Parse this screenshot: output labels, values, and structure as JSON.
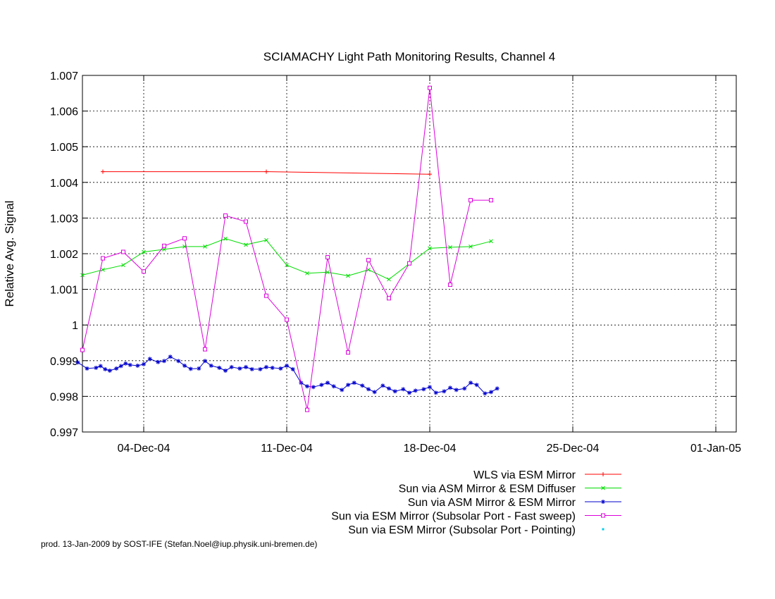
{
  "chart_data": {
    "type": "line",
    "title": "SCIAMACHY Light Path Monitoring Results, Channel 4",
    "xlabel": "",
    "ylabel": "Relative Avg. Signal",
    "x_range": [
      "30-Nov-04",
      "01-Jan-05"
    ],
    "xlim_days": [
      0,
      32
    ],
    "ylim": [
      0.997,
      1.007
    ],
    "x_ticks": [
      {
        "day": 3,
        "label": "04-Dec-04"
      },
      {
        "day": 10,
        "label": "11-Dec-04"
      },
      {
        "day": 17,
        "label": "18-Dec-04"
      },
      {
        "day": 24,
        "label": "25-Dec-04"
      },
      {
        "day": 31,
        "label": "01-Jan-05"
      }
    ],
    "y_ticks": [
      {
        "value": 0.997,
        "label": "0.997"
      },
      {
        "value": 0.998,
        "label": "0.998"
      },
      {
        "value": 0.999,
        "label": "0.999"
      },
      {
        "value": 1.0,
        "label": "1"
      },
      {
        "value": 1.001,
        "label": "1.001"
      },
      {
        "value": 1.002,
        "label": "1.002"
      },
      {
        "value": 1.003,
        "label": "1.003"
      },
      {
        "value": 1.004,
        "label": "1.004"
      },
      {
        "value": 1.005,
        "label": "1.005"
      },
      {
        "value": 1.006,
        "label": "1.006"
      },
      {
        "value": 1.007,
        "label": "1.007"
      }
    ],
    "grid": true,
    "legend_position": "bottom-right",
    "series": [
      {
        "name": "WLS via ESM Mirror",
        "color": "#ff0000",
        "marker": "plus",
        "x": [
          "01-Dec-04",
          "09-Dec-04",
          "17-Dec-04"
        ],
        "y": [
          1.0043,
          1.0043,
          1.00423
        ]
      },
      {
        "name": "Sun via ASM Mirror & ESM Diffuser",
        "color": "#00dd00",
        "marker": "cross",
        "x": [
          "30-Nov-04",
          "01-Dec-04",
          "02-Dec-04",
          "03-Dec-04",
          "04-Dec-04",
          "05-Dec-04",
          "06-Dec-04",
          "07-Dec-04",
          "08-Dec-04",
          "09-Dec-04",
          "10-Dec-04",
          "11-Dec-04",
          "12-Dec-04",
          "13-Dec-04",
          "14-Dec-04",
          "15-Dec-04",
          "16-Dec-04",
          "17-Dec-04",
          "18-Dec-04",
          "19-Dec-04",
          "20-Dec-04"
        ],
        "y": [
          1.0014,
          1.00155,
          1.00168,
          1.00205,
          1.00212,
          1.0022,
          1.0022,
          1.00242,
          1.00225,
          1.00238,
          1.00168,
          1.00145,
          1.00148,
          1.00138,
          1.00155,
          1.00128,
          1.00172,
          1.00215,
          1.00218,
          1.0022,
          1.00235
        ]
      },
      {
        "name": "Sun via ASM Mirror & ESM Mirror",
        "color": "#0000cc",
        "marker": "star",
        "x": [
          "30-Nov-04",
          "30-Nov-04",
          "01-Dec-04",
          "01-Dec-04",
          "01-Dec-04",
          "01-Dec-04",
          "02-Dec-04",
          "02-Dec-04",
          "02-Dec-04",
          "02-Dec-04",
          "03-Dec-04",
          "03-Dec-04",
          "03-Dec-04",
          "04-Dec-04",
          "04-Dec-04",
          "04-Dec-04",
          "05-Dec-04",
          "05-Dec-04",
          "05-Dec-04",
          "06-Dec-04",
          "06-Dec-04",
          "06-Dec-04",
          "07-Dec-04",
          "07-Dec-04",
          "07-Dec-04",
          "08-Dec-04",
          "08-Dec-04",
          "08-Dec-04",
          "09-Dec-04",
          "09-Dec-04",
          "09-Dec-04",
          "10-Dec-04",
          "10-Dec-04",
          "10-Dec-04",
          "11-Dec-04",
          "11-Dec-04",
          "11-Dec-04",
          "12-Dec-04",
          "12-Dec-04",
          "12-Dec-04",
          "13-Dec-04",
          "13-Dec-04",
          "13-Dec-04",
          "14-Dec-04",
          "14-Dec-04",
          "14-Dec-04",
          "15-Dec-04",
          "15-Dec-04",
          "15-Dec-04",
          "16-Dec-04",
          "16-Dec-04",
          "16-Dec-04",
          "17-Dec-04",
          "17-Dec-04",
          "17-Dec-04",
          "18-Dec-04",
          "18-Dec-04",
          "18-Dec-04",
          "19-Dec-04",
          "19-Dec-04",
          "19-Dec-04",
          "20-Dec-04",
          "20-Dec-04",
          "20-Dec-04"
        ],
        "y": [
          0.99895,
          0.99878,
          0.9988,
          0.99885,
          0.99876,
          0.99872,
          0.99878,
          0.99885,
          0.99892,
          0.99888,
          0.99886,
          0.9989,
          0.99905,
          0.99896,
          0.99899,
          0.99911,
          0.99899,
          0.99886,
          0.99877,
          0.99878,
          0.99899,
          0.99886,
          0.9988,
          0.99872,
          0.99882,
          0.99878,
          0.99882,
          0.99876,
          0.99876,
          0.99882,
          0.9988,
          0.99878,
          0.99886,
          0.99876,
          0.99838,
          0.99828,
          0.99826,
          0.99832,
          0.99838,
          0.99828,
          0.99818,
          0.99832,
          0.99838,
          0.9983,
          0.9982,
          0.99812,
          0.9983,
          0.99822,
          0.99814,
          0.9982,
          0.9981,
          0.99816,
          0.9982,
          0.99826,
          0.9981,
          0.99814,
          0.99824,
          0.99818,
          0.99822,
          0.99838,
          0.99832,
          0.99808,
          0.99812,
          0.99822
        ]
      },
      {
        "name": "Sun via ESM Mirror (Subsolar Port - Fast sweep)",
        "color": "#dd00dd",
        "marker": "square",
        "x": [
          "30-Nov-04",
          "01-Dec-04",
          "02-Dec-04",
          "03-Dec-04",
          "04-Dec-04",
          "05-Dec-04",
          "06-Dec-04",
          "07-Dec-04",
          "08-Dec-04",
          "09-Dec-04",
          "10-Dec-04",
          "11-Dec-04",
          "12-Dec-04",
          "13-Dec-04",
          "14-Dec-04",
          "15-Dec-04",
          "16-Dec-04",
          "17-Dec-04",
          "18-Dec-04",
          "19-Dec-04",
          "20-Dec-04"
        ],
        "y": [
          0.9993,
          1.00187,
          1.00205,
          1.0015,
          1.00222,
          1.00243,
          0.99932,
          1.00307,
          1.0029,
          1.00082,
          1.00015,
          0.99762,
          1.0019,
          0.99923,
          1.00182,
          1.00075,
          1.00173,
          1.00665,
          1.00113,
          1.0035,
          1.0035
        ]
      },
      {
        "name": "Sun via ESM Mirror (Subsolar Port - Pointing)",
        "color": "#00ccee",
        "marker": "dot",
        "x": [],
        "y": []
      }
    ]
  },
  "credit": "prod. 13-Jan-2009 by SOST-IFE (Stefan.Noel@iup.physik.uni-bremen.de)"
}
